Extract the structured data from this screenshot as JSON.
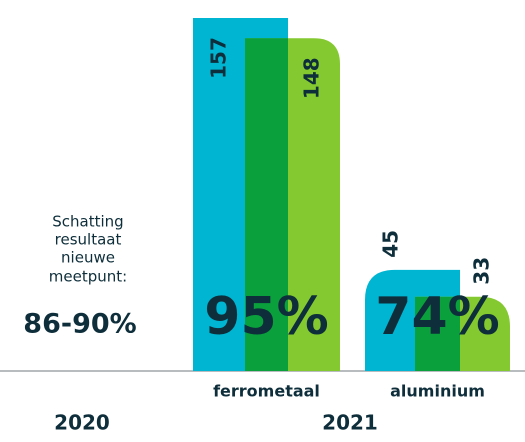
{
  "chart_data": {
    "type": "bar",
    "categories": [
      "ferrometaal",
      "aluminium"
    ],
    "series": [
      {
        "color": "#00b5d1",
        "values": [
          157,
          45
        ]
      },
      {
        "color": "#84c92f",
        "values": [
          148,
          33
        ]
      }
    ],
    "overlap_color": "#0aa03c",
    "ylim": [
      0,
      165
    ],
    "shares": [
      95,
      74
    ],
    "share_labels": [
      "95%",
      "74%"
    ],
    "estimate_text": [
      "Schatting",
      "resultaat",
      "nieuwe",
      "meetpunt:"
    ],
    "estimate": "86-90%",
    "periods": [
      "2020",
      "2021"
    ]
  }
}
